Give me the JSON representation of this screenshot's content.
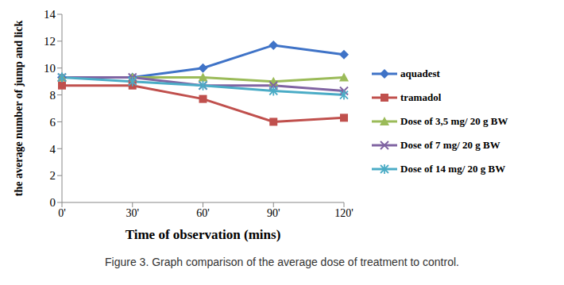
{
  "chart_data": {
    "type": "line",
    "title": "Figure 3. Graph comparison of the average dose of treatment to control.",
    "x_label": "Time of observation (mins)",
    "y_label": "the average number of jump and lick",
    "categories": [
      "0'",
      "30'",
      "60'",
      "90'",
      "120'"
    ],
    "ylim": [
      0,
      14
    ],
    "yticks": [
      0,
      2,
      4,
      6,
      8,
      10,
      12,
      14
    ],
    "grid": false,
    "legend": "right",
    "series": [
      {
        "name": "aquadest",
        "color": "#3f73c7",
        "marker": "diamond",
        "values": [
          9.3,
          9.3,
          10,
          11.7,
          11
        ]
      },
      {
        "name": "tramadol",
        "color": "#c0504d",
        "marker": "square",
        "values": [
          8.7,
          8.7,
          7.7,
          6,
          6.3
        ]
      },
      {
        "name": "Dose of 3,5 mg/ 20 g BW",
        "color": "#9bbb59",
        "marker": "triangle",
        "values": [
          9.3,
          9.3,
          9.3,
          9,
          9.3
        ]
      },
      {
        "name": "Dose of 7 mg/ 20 g BW",
        "color": "#8064a2",
        "marker": "x",
        "values": [
          9.3,
          9.3,
          8.7,
          8.7,
          8.3
        ]
      },
      {
        "name": "Dose of 14 mg/ 20 g BW",
        "color": "#4bacc6",
        "marker": "star",
        "values": [
          9.3,
          9,
          8.7,
          8.3,
          8
        ]
      }
    ]
  }
}
